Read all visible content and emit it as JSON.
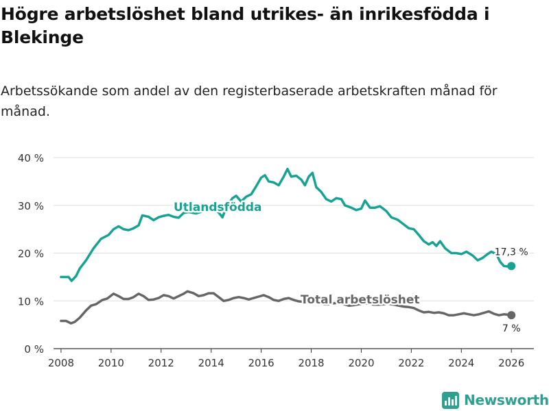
{
  "header": {
    "title": "Högre arbetslöshet bland utrikes- än inrikesfödda i Blekinge",
    "subtitle": "Arbetssökande som andel av den registerbaserade arbetskraften månad för månad."
  },
  "brand": {
    "name": "Newsworthy",
    "icon": "bar-chart-icon",
    "color": "#2f9f8f"
  },
  "chart_data": {
    "type": "line",
    "title": "Högre arbetslöshet bland utrikes- än inrikesfödda i Blekinge",
    "xlabel": "",
    "ylabel": "",
    "xlim": [
      2007.7,
      2026.9
    ],
    "ylim": [
      0,
      40
    ],
    "x_ticks": [
      2008,
      2010,
      2012,
      2014,
      2016,
      2018,
      2020,
      2022,
      2024,
      2026
    ],
    "x_tick_labels": [
      "2008",
      "2010",
      "2012",
      "2014",
      "2016",
      "2018",
      "2020",
      "2022",
      "2024",
      "2026"
    ],
    "y_ticks": [
      0,
      10,
      20,
      30,
      40
    ],
    "y_tick_labels": [
      "0 %",
      "10 %",
      "20 %",
      "30 %",
      "40 %"
    ],
    "grid": true,
    "series": [
      {
        "name": "Utlandsfödda",
        "color": "#17a392",
        "end_label": "17,3 %",
        "points": [
          [
            2008.0,
            15.0
          ],
          [
            2008.3,
            15.0
          ],
          [
            2008.42,
            14.2
          ],
          [
            2008.6,
            15.2
          ],
          [
            2008.75,
            16.8
          ],
          [
            2009.0,
            18.5
          ],
          [
            2009.3,
            21.0
          ],
          [
            2009.6,
            23.0
          ],
          [
            2009.9,
            23.8
          ],
          [
            2010.1,
            25.0
          ],
          [
            2010.3,
            25.6
          ],
          [
            2010.5,
            25.0
          ],
          [
            2010.7,
            24.8
          ],
          [
            2010.9,
            25.2
          ],
          [
            2011.1,
            25.8
          ],
          [
            2011.25,
            27.9
          ],
          [
            2011.5,
            27.6
          ],
          [
            2011.7,
            26.9
          ],
          [
            2011.9,
            27.5
          ],
          [
            2012.1,
            27.8
          ],
          [
            2012.3,
            28.0
          ],
          [
            2012.5,
            27.6
          ],
          [
            2012.7,
            27.4
          ],
          [
            2012.9,
            28.4
          ],
          [
            2013.1,
            28.6
          ],
          [
            2013.4,
            28.3
          ],
          [
            2013.7,
            28.8
          ],
          [
            2014.0,
            29.5
          ],
          [
            2014.3,
            28.5
          ],
          [
            2014.45,
            27.5
          ],
          [
            2014.6,
            29.5
          ],
          [
            2014.85,
            31.5
          ],
          [
            2015.0,
            32.0
          ],
          [
            2015.2,
            30.8
          ],
          [
            2015.4,
            31.8
          ],
          [
            2015.6,
            32.3
          ],
          [
            2015.8,
            34.0
          ],
          [
            2016.0,
            35.8
          ],
          [
            2016.15,
            36.3
          ],
          [
            2016.3,
            35.0
          ],
          [
            2016.5,
            34.8
          ],
          [
            2016.7,
            34.2
          ],
          [
            2016.9,
            36.0
          ],
          [
            2017.05,
            37.6
          ],
          [
            2017.2,
            36.0
          ],
          [
            2017.4,
            36.2
          ],
          [
            2017.6,
            35.4
          ],
          [
            2017.75,
            34.2
          ],
          [
            2017.9,
            36.0
          ],
          [
            2018.05,
            36.8
          ],
          [
            2018.2,
            33.8
          ],
          [
            2018.4,
            32.8
          ],
          [
            2018.6,
            31.3
          ],
          [
            2018.8,
            30.8
          ],
          [
            2019.0,
            31.5
          ],
          [
            2019.2,
            31.3
          ],
          [
            2019.35,
            30.0
          ],
          [
            2019.6,
            29.5
          ],
          [
            2019.8,
            29.0
          ],
          [
            2020.0,
            29.3
          ],
          [
            2020.15,
            31.0
          ],
          [
            2020.35,
            29.5
          ],
          [
            2020.55,
            29.5
          ],
          [
            2020.75,
            29.8
          ],
          [
            2021.0,
            28.8
          ],
          [
            2021.2,
            27.5
          ],
          [
            2021.45,
            27.0
          ],
          [
            2021.7,
            26.0
          ],
          [
            2021.9,
            25.2
          ],
          [
            2022.1,
            25.0
          ],
          [
            2022.3,
            23.8
          ],
          [
            2022.5,
            22.5
          ],
          [
            2022.7,
            21.8
          ],
          [
            2022.85,
            22.3
          ],
          [
            2023.0,
            21.5
          ],
          [
            2023.15,
            22.5
          ],
          [
            2023.35,
            21.0
          ],
          [
            2023.6,
            20.0
          ],
          [
            2023.8,
            20.0
          ],
          [
            2024.0,
            19.8
          ],
          [
            2024.2,
            20.3
          ],
          [
            2024.45,
            19.5
          ],
          [
            2024.65,
            18.5
          ],
          [
            2024.85,
            19.0
          ],
          [
            2025.05,
            19.8
          ],
          [
            2025.2,
            20.3
          ],
          [
            2025.4,
            19.8
          ],
          [
            2025.55,
            18.2
          ],
          [
            2025.7,
            17.3
          ],
          [
            2025.85,
            17.2
          ],
          [
            2026.0,
            17.3
          ]
        ]
      },
      {
        "name": "Total arbetslöshet",
        "color": "#666666",
        "end_label": "7 %",
        "points": [
          [
            2008.0,
            5.8
          ],
          [
            2008.2,
            5.8
          ],
          [
            2008.4,
            5.3
          ],
          [
            2008.55,
            5.6
          ],
          [
            2008.75,
            6.5
          ],
          [
            2009.0,
            8.0
          ],
          [
            2009.2,
            9.0
          ],
          [
            2009.4,
            9.3
          ],
          [
            2009.65,
            10.2
          ],
          [
            2009.85,
            10.5
          ],
          [
            2010.1,
            11.5
          ],
          [
            2010.3,
            11.0
          ],
          [
            2010.5,
            10.4
          ],
          [
            2010.7,
            10.4
          ],
          [
            2010.9,
            10.8
          ],
          [
            2011.1,
            11.5
          ],
          [
            2011.3,
            11.0
          ],
          [
            2011.5,
            10.2
          ],
          [
            2011.7,
            10.3
          ],
          [
            2011.9,
            10.6
          ],
          [
            2012.1,
            11.2
          ],
          [
            2012.3,
            11.0
          ],
          [
            2012.5,
            10.5
          ],
          [
            2012.7,
            11.0
          ],
          [
            2012.9,
            11.5
          ],
          [
            2013.05,
            12.0
          ],
          [
            2013.3,
            11.6
          ],
          [
            2013.5,
            11.0
          ],
          [
            2013.7,
            11.2
          ],
          [
            2013.9,
            11.6
          ],
          [
            2014.1,
            11.6
          ],
          [
            2014.3,
            10.8
          ],
          [
            2014.5,
            10.0
          ],
          [
            2014.7,
            10.2
          ],
          [
            2014.9,
            10.6
          ],
          [
            2015.1,
            10.8
          ],
          [
            2015.3,
            10.6
          ],
          [
            2015.5,
            10.3
          ],
          [
            2015.7,
            10.6
          ],
          [
            2015.9,
            10.9
          ],
          [
            2016.1,
            11.2
          ],
          [
            2016.3,
            10.8
          ],
          [
            2016.5,
            10.2
          ],
          [
            2016.7,
            10.0
          ],
          [
            2016.9,
            10.4
          ],
          [
            2017.1,
            10.6
          ],
          [
            2017.3,
            10.2
          ],
          [
            2017.5,
            9.9
          ],
          [
            2017.7,
            9.8
          ],
          [
            2017.9,
            10.0
          ],
          [
            2018.1,
            10.0
          ],
          [
            2018.3,
            9.6
          ],
          [
            2018.5,
            9.3
          ],
          [
            2018.7,
            9.3
          ],
          [
            2018.9,
            9.5
          ],
          [
            2019.1,
            9.6
          ],
          [
            2019.3,
            9.3
          ],
          [
            2019.5,
            9.0
          ],
          [
            2019.7,
            9.1
          ],
          [
            2019.9,
            9.3
          ],
          [
            2020.1,
            9.4
          ],
          [
            2020.3,
            9.5
          ],
          [
            2020.5,
            9.2
          ],
          [
            2020.7,
            9.2
          ],
          [
            2020.9,
            9.3
          ],
          [
            2021.1,
            9.4
          ],
          [
            2021.3,
            9.2
          ],
          [
            2021.5,
            9.0
          ],
          [
            2021.7,
            8.8
          ],
          [
            2021.9,
            8.7
          ],
          [
            2022.1,
            8.5
          ],
          [
            2022.3,
            8.0
          ],
          [
            2022.5,
            7.6
          ],
          [
            2022.7,
            7.7
          ],
          [
            2022.9,
            7.5
          ],
          [
            2023.1,
            7.6
          ],
          [
            2023.3,
            7.4
          ],
          [
            2023.5,
            7.0
          ],
          [
            2023.7,
            7.0
          ],
          [
            2023.9,
            7.2
          ],
          [
            2024.1,
            7.4
          ],
          [
            2024.3,
            7.2
          ],
          [
            2024.5,
            7.0
          ],
          [
            2024.7,
            7.2
          ],
          [
            2024.9,
            7.5
          ],
          [
            2025.1,
            7.8
          ],
          [
            2025.3,
            7.3
          ],
          [
            2025.5,
            7.0
          ],
          [
            2025.7,
            7.2
          ],
          [
            2025.9,
            7.1
          ],
          [
            2026.0,
            7.0
          ]
        ]
      }
    ]
  }
}
